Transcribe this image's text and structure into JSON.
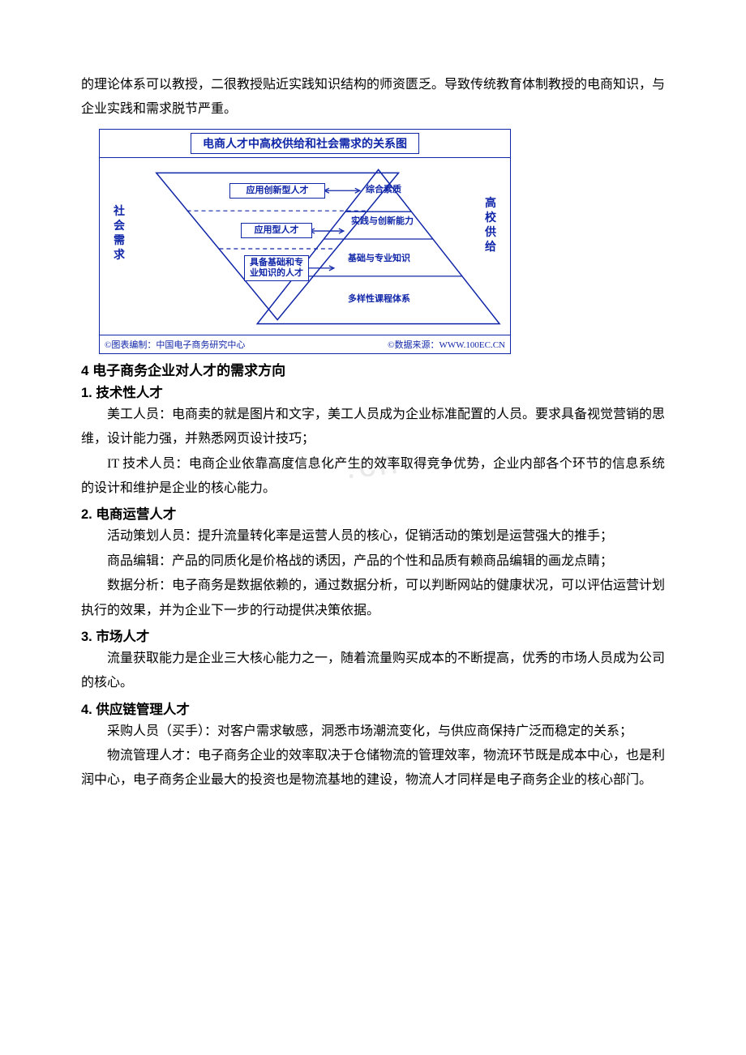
{
  "intro": {
    "p1": "的理论体系可以教授，二很教授贴近实践知识结构的师资匮乏。导致传统教育体制教授的电商知识，与企业实践和需求脱节严重。"
  },
  "diagram": {
    "title": "电商人才中高校供给和社会需求的关系图",
    "colors": {
      "line": "#1026a8",
      "text": "#1026a8",
      "background": "#ffffff",
      "dash": "#1026a8"
    },
    "left_label": "社会需求",
    "right_label": "高校供给",
    "inverted_levels": {
      "top": "应用创新型人才",
      "mid": "应用型人才",
      "bottom": "具备基础和专业知识的人才"
    },
    "pyramid_levels": {
      "l1": "综合素质",
      "l2": "实践与创新能力",
      "l3": "基础与专业知识",
      "l4": "多样性课程体系"
    },
    "footer_left": "©图表编制：中国电子商务研究中心",
    "footer_right": "©数据来源：WWW.100EC.CN"
  },
  "section4": {
    "heading": "4 电子商务企业对人才的需求方向",
    "s1": {
      "heading": "1. 技术性人才",
      "p1": "美工人员：电商卖的就是图片和文字，美工人员成为企业标准配置的人员。要求具备视觉营销的思维，设计能力强，并熟悉网页设计技巧；",
      "p2": "IT 技术人员：电商企业依靠高度信息化产生的效率取得竞争优势，企业内部各个环节的信息系统的设计和维护是企业的核心能力。"
    },
    "s2": {
      "heading": "2. 电商运营人才",
      "p1": "活动策划人员：提升流量转化率是运营人员的核心，促销活动的策划是运营强大的推手；",
      "p2": "商品编辑：产品的同质化是价格战的诱因，产品的个性和品质有赖商品编辑的画龙点睛；",
      "p3": "数据分析：电子商务是数据依赖的，通过数据分析，可以判断网站的健康状况，可以评估运营计划执行的效果，并为企业下一步的行动提供决策依据。"
    },
    "s3": {
      "heading": "3. 市场人才",
      "p1": "流量获取能力是企业三大核心能力之一，随着流量购买成本的不断提高，优秀的市场人员成为公司的核心。"
    },
    "s4": {
      "heading": "4. 供应链管理人才",
      "p1": "采购人员（买手）：对客户需求敏感，洞悉市场潮流变化，与供应商保持广泛而稳定的关系；",
      "p2": "物流管理人才：电子商务企业的效率取决于仓储物流的管理效率，物流环节既是成本中心，也是利润中心，电子商务企业最大的投资也是物流基地的建设，物流人才同样是电子商务企业的核心部门。"
    }
  },
  "watermark": ".cn"
}
